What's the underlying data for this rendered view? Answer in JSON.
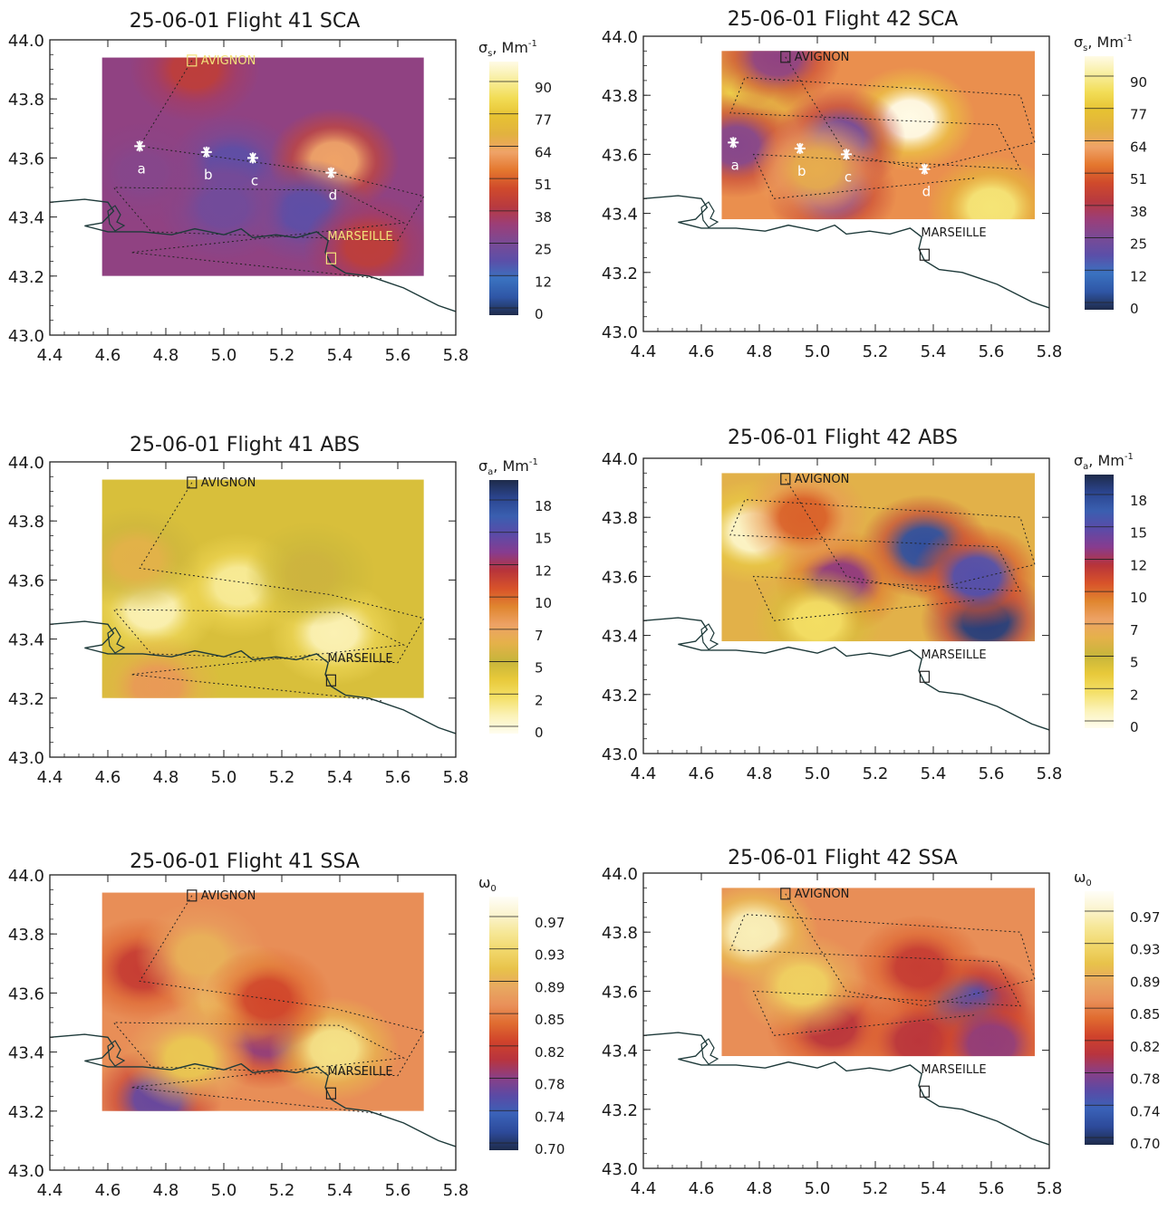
{
  "colorbars": {
    "sca": {
      "label": "σ",
      "sub": "s",
      "unit": "Mm",
      "exp": "-1",
      "ticks": [
        "90",
        "77",
        "64",
        "51",
        "38",
        "25",
        "12",
        "0"
      ]
    },
    "abs": {
      "label": "σ",
      "sub": "a",
      "unit": "Mm",
      "exp": "-1",
      "ticks": [
        "18",
        "15",
        "12",
        "10",
        "7",
        "5",
        "2",
        "0"
      ]
    },
    "ssa": {
      "label": "ω",
      "sub": "0",
      "unit": "",
      "exp": "",
      "ticks": [
        "0.97",
        "0.93",
        "0.89",
        "0.85",
        "0.82",
        "0.78",
        "0.74",
        "0.70"
      ]
    }
  },
  "palettes": {
    "sca": [
      "#1f2b4a",
      "#2f56a6",
      "#3a72c0",
      "#5b4fa8",
      "#7a4a95",
      "#9b3e78",
      "#b83a3f",
      "#d04a2b",
      "#e4772e",
      "#efa368",
      "#e2b23f",
      "#e7c232",
      "#f2dd56",
      "#f8ee9e",
      "#fffbe6"
    ],
    "abs": [
      "#fffdf0",
      "#fbf2b7",
      "#f4e067",
      "#e8c93a",
      "#c7b53b",
      "#e5b14a",
      "#eda266",
      "#e0862f",
      "#d8532a",
      "#b8343a",
      "#873c8f",
      "#5b4ba8",
      "#3a5fb0",
      "#2b4590",
      "#1e2b4a"
    ],
    "ssa": [
      "#1e2b4a",
      "#2d4a9a",
      "#3a62b8",
      "#5a4aa5",
      "#8a3f86",
      "#b8343e",
      "#d0432b",
      "#e06c30",
      "#e9905a",
      "#e8a860",
      "#e8c24a",
      "#f1d76a",
      "#f6e796",
      "#fbf4cf",
      "#fffef8"
    ]
  },
  "chart_data": [
    {
      "type": "heatmap",
      "title": "25-06-01 Flight 41 SCA",
      "xticks": [
        "4.4",
        "4.6",
        "4.8",
        "5.0",
        "5.2",
        "5.4",
        "5.6",
        "5.8"
      ],
      "yticks": [
        "43.0",
        "43.2",
        "43.4",
        "43.6",
        "43.8",
        "44.0"
      ],
      "xlim": [
        4.4,
        5.8
      ],
      "ylim": [
        43.0,
        44.0
      ],
      "colorbar": "sca",
      "field_extent": {
        "lon": [
          4.58,
          5.69
        ],
        "lat": [
          43.2,
          43.94
        ]
      },
      "levels": [
        0,
        90
      ],
      "background_value": 30,
      "features": [
        {
          "lon": 4.9,
          "lat": 43.9,
          "value": 40
        },
        {
          "lon": 5.03,
          "lat": 43.57,
          "value": 20
        },
        {
          "lon": 5.38,
          "lat": 43.59,
          "value": 58
        },
        {
          "lon": 5.28,
          "lat": 43.42,
          "value": 20
        },
        {
          "lon": 5.0,
          "lat": 43.43,
          "value": 24
        },
        {
          "lon": 4.72,
          "lat": 43.55,
          "value": 28
        },
        {
          "lon": 5.5,
          "lat": 43.3,
          "value": 40
        }
      ],
      "cities": [
        {
          "name": "AVIGNON",
          "lon": 4.89,
          "lat": 43.93
        },
        {
          "name": "MARSEILLE",
          "lon": 5.37,
          "lat": 43.26
        }
      ],
      "points": [
        {
          "label": "a",
          "lon": 4.71,
          "lat": 43.64
        },
        {
          "label": "b",
          "lon": 4.94,
          "lat": 43.62
        },
        {
          "label": "c",
          "lon": 5.1,
          "lat": 43.6
        },
        {
          "label": "d",
          "lon": 5.37,
          "lat": 43.55
        }
      ]
    },
    {
      "type": "heatmap",
      "title": "25-06-01 Flight 42 SCA",
      "xticks": [
        "4.4",
        "4.6",
        "4.8",
        "5.0",
        "5.2",
        "5.4",
        "5.6",
        "5.8"
      ],
      "yticks": [
        "43.0",
        "43.2",
        "43.4",
        "43.6",
        "43.8",
        "44.0"
      ],
      "xlim": [
        4.4,
        5.8
      ],
      "ylim": [
        43.0,
        44.0
      ],
      "colorbar": "sca",
      "field_extent": {
        "lon": [
          4.67,
          5.75
        ],
        "lat": [
          43.38,
          43.95
        ]
      },
      "levels": [
        0,
        90
      ],
      "background_value": 55,
      "features": [
        {
          "lon": 4.78,
          "lat": 43.82,
          "value": 75
        },
        {
          "lon": 5.32,
          "lat": 43.72,
          "value": 92
        },
        {
          "lon": 4.72,
          "lat": 43.63,
          "value": 28
        },
        {
          "lon": 5.08,
          "lat": 43.65,
          "value": 25
        },
        {
          "lon": 5.05,
          "lat": 43.47,
          "value": 30
        },
        {
          "lon": 4.86,
          "lat": 43.93,
          "value": 30
        },
        {
          "lon": 5.6,
          "lat": 43.42,
          "value": 80
        },
        {
          "lon": 5.0,
          "lat": 43.55,
          "value": 62
        }
      ],
      "cities": [
        {
          "name": "AVIGNON",
          "lon": 4.89,
          "lat": 43.93
        },
        {
          "name": "MARSEILLE",
          "lon": 5.37,
          "lat": 43.26
        }
      ],
      "points": [
        {
          "label": "a",
          "lon": 4.71,
          "lat": 43.64
        },
        {
          "label": "b",
          "lon": 4.94,
          "lat": 43.62
        },
        {
          "label": "c",
          "lon": 5.1,
          "lat": 43.6
        },
        {
          "label": "d",
          "lon": 5.37,
          "lat": 43.55
        }
      ]
    },
    {
      "type": "heatmap",
      "title": "25-06-01 Flight 41 ABS",
      "xticks": [
        "4.4",
        "4.6",
        "4.8",
        "5.0",
        "5.2",
        "5.4",
        "5.6",
        "5.8"
      ],
      "yticks": [
        "43.0",
        "43.2",
        "43.4",
        "43.6",
        "43.8",
        "44.0"
      ],
      "xlim": [
        4.4,
        5.8
      ],
      "ylim": [
        43.0,
        44.0
      ],
      "colorbar": "abs",
      "field_extent": {
        "lon": [
          4.58,
          5.69
        ],
        "lat": [
          43.2,
          43.94
        ]
      },
      "levels": [
        0,
        20
      ],
      "background_value": 5,
      "features": [
        {
          "lon": 4.75,
          "lat": 43.5,
          "value": 1.5
        },
        {
          "lon": 5.38,
          "lat": 43.42,
          "value": 1.5
        },
        {
          "lon": 5.05,
          "lat": 43.58,
          "value": 2
        },
        {
          "lon": 4.77,
          "lat": 43.24,
          "value": 9
        },
        {
          "lon": 4.7,
          "lat": 43.67,
          "value": 7
        },
        {
          "lon": 5.3,
          "lat": 43.62,
          "value": 6
        }
      ],
      "cities": [
        {
          "name": "AVIGNON",
          "lon": 4.89,
          "lat": 43.93
        },
        {
          "name": "MARSEILLE",
          "lon": 5.37,
          "lat": 43.26
        }
      ],
      "points": []
    },
    {
      "type": "heatmap",
      "title": "25-06-01 Flight 42 ABS",
      "xticks": [
        "4.4",
        "4.6",
        "4.8",
        "5.0",
        "5.2",
        "5.4",
        "5.6",
        "5.8"
      ],
      "yticks": [
        "43.0",
        "43.2",
        "43.4",
        "43.6",
        "43.8",
        "44.0"
      ],
      "xlim": [
        4.4,
        5.8
      ],
      "ylim": [
        43.0,
        44.0
      ],
      "colorbar": "abs",
      "field_extent": {
        "lon": [
          4.67,
          5.75
        ],
        "lat": [
          43.38,
          43.95
        ]
      },
      "levels": [
        0,
        20
      ],
      "background_value": 7,
      "features": [
        {
          "lon": 4.78,
          "lat": 43.75,
          "value": 1
        },
        {
          "lon": 5.37,
          "lat": 43.7,
          "value": 18
        },
        {
          "lon": 5.58,
          "lat": 43.45,
          "value": 19
        },
        {
          "lon": 5.55,
          "lat": 43.6,
          "value": 16
        },
        {
          "lon": 5.08,
          "lat": 43.58,
          "value": 14
        },
        {
          "lon": 4.95,
          "lat": 43.8,
          "value": 11
        },
        {
          "lon": 5.0,
          "lat": 43.45,
          "value": 3
        }
      ],
      "cities": [
        {
          "name": "AVIGNON",
          "lon": 4.89,
          "lat": 43.93
        },
        {
          "name": "MARSEILLE",
          "lon": 5.37,
          "lat": 43.26
        }
      ],
      "points": []
    },
    {
      "type": "heatmap",
      "title": "25-06-01 Flight 41 SSA",
      "xticks": [
        "4.4",
        "4.6",
        "4.8",
        "5.0",
        "5.2",
        "5.4",
        "5.6",
        "5.8"
      ],
      "yticks": [
        "43.0",
        "43.2",
        "43.4",
        "43.6",
        "43.8",
        "44.0"
      ],
      "xlim": [
        4.4,
        5.8
      ],
      "ylim": [
        43.0,
        44.0
      ],
      "colorbar": "ssa",
      "field_extent": {
        "lon": [
          4.58,
          5.69
        ],
        "lat": [
          43.2,
          43.94
        ]
      },
      "levels": [
        0.7,
        1.0
      ],
      "background_value": 0.87,
      "features": [
        {
          "lon": 5.15,
          "lat": 43.45,
          "value": 0.79
        },
        {
          "lon": 4.77,
          "lat": 43.24,
          "value": 0.77
        },
        {
          "lon": 4.72,
          "lat": 43.68,
          "value": 0.82
        },
        {
          "lon": 5.04,
          "lat": 43.6,
          "value": 0.94
        },
        {
          "lon": 5.38,
          "lat": 43.41,
          "value": 0.95
        },
        {
          "lon": 4.92,
          "lat": 43.73,
          "value": 0.9
        },
        {
          "lon": 5.15,
          "lat": 43.58,
          "value": 0.83
        },
        {
          "lon": 4.88,
          "lat": 43.38,
          "value": 0.92
        }
      ],
      "cities": [
        {
          "name": "AVIGNON",
          "lon": 4.89,
          "lat": 43.93
        },
        {
          "name": "MARSEILLE",
          "lon": 5.37,
          "lat": 43.26
        }
      ],
      "points": []
    },
    {
      "type": "heatmap",
      "title": "25-06-01 Flight 42 SSA",
      "xticks": [
        "4.4",
        "4.6",
        "4.8",
        "5.0",
        "5.2",
        "5.4",
        "5.6",
        "5.8"
      ],
      "yticks": [
        "43.0",
        "43.2",
        "43.4",
        "43.6",
        "43.8",
        "44.0"
      ],
      "xlim": [
        4.4,
        5.8
      ],
      "ylim": [
        43.0,
        44.0
      ],
      "colorbar": "ssa",
      "field_extent": {
        "lon": [
          4.67,
          5.75
        ],
        "lat": [
          43.38,
          43.95
        ]
      },
      "levels": [
        0.7,
        1.0
      ],
      "background_value": 0.87,
      "features": [
        {
          "lon": 4.78,
          "lat": 43.8,
          "value": 0.97
        },
        {
          "lon": 5.55,
          "lat": 43.55,
          "value": 0.78
        },
        {
          "lon": 5.5,
          "lat": 43.55,
          "value": 0.76
        },
        {
          "lon": 5.35,
          "lat": 43.68,
          "value": 0.82
        },
        {
          "lon": 5.05,
          "lat": 43.48,
          "value": 0.81
        },
        {
          "lon": 5.35,
          "lat": 43.43,
          "value": 0.81
        },
        {
          "lon": 5.6,
          "lat": 43.42,
          "value": 0.79
        },
        {
          "lon": 4.95,
          "lat": 43.62,
          "value": 0.93
        }
      ],
      "cities": [
        {
          "name": "AVIGNON",
          "lon": 4.89,
          "lat": 43.93
        },
        {
          "name": "MARSEILLE",
          "lon": 5.37,
          "lat": 43.26
        }
      ],
      "points": []
    }
  ]
}
